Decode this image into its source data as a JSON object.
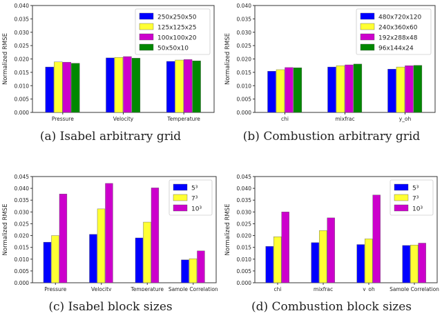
{
  "chart_data": [
    {
      "type": "bar",
      "caption": "(a) Isabel arbitrary grid",
      "ylabel": "Normalized RMSE",
      "ylim": [
        0,
        0.04
      ],
      "yticks": [
        "0.000",
        "0.005",
        "0.010",
        "0.015",
        "0.020",
        "0.025",
        "0.030",
        "0.035",
        "0.040"
      ],
      "categories": [
        "Pressure",
        "Velocity",
        "Temperature"
      ],
      "legend_position": "top-right",
      "series": [
        {
          "name": "250x250x50",
          "color": "#0000ff",
          "values": [
            0.017,
            0.0204,
            0.0191
          ]
        },
        {
          "name": "125x125x25",
          "color": "#ffff33",
          "values": [
            0.0189,
            0.0206,
            0.0196
          ]
        },
        {
          "name": "100x100x20",
          "color": "#cc00cc",
          "values": [
            0.0188,
            0.0209,
            0.0198
          ]
        },
        {
          "name": "50x50x10",
          "color": "#008800",
          "values": [
            0.0184,
            0.0203,
            0.0193
          ]
        }
      ]
    },
    {
      "type": "bar",
      "caption": "(b) Combustion arbitrary grid",
      "ylabel": "Normalized RMSE",
      "ylim": [
        0,
        0.04
      ],
      "yticks": [
        "0.000",
        "0.005",
        "0.010",
        "0.015",
        "0.020",
        "0.025",
        "0.030",
        "0.035",
        "0.040"
      ],
      "categories": [
        "chi",
        "mixfrac",
        "y_oh"
      ],
      "legend_position": "top-right",
      "series": [
        {
          "name": "480x720x120",
          "color": "#0000ff",
          "values": [
            0.0154,
            0.017,
            0.0162
          ]
        },
        {
          "name": "240x360x60",
          "color": "#ffff33",
          "values": [
            0.016,
            0.0175,
            0.017
          ]
        },
        {
          "name": "192x288x48",
          "color": "#cc00cc",
          "values": [
            0.0168,
            0.0178,
            0.0175
          ]
        },
        {
          "name": "96x144x24",
          "color": "#008800",
          "values": [
            0.0167,
            0.0181,
            0.0176
          ]
        }
      ]
    },
    {
      "type": "bar",
      "caption": "(c) Isabel block sizes",
      "ylabel": "Normalized RMSE",
      "ylim": [
        0,
        0.045
      ],
      "yticks": [
        "0.000",
        "0.005",
        "0.010",
        "0.015",
        "0.020",
        "0.025",
        "0.030",
        "0.035",
        "0.040",
        "0.045"
      ],
      "categories": [
        "Pressure",
        "Velocity",
        "Temperature",
        "Sample Correlation"
      ],
      "legend_position": "top-right",
      "series": [
        {
          "name": "5³",
          "color": "#0000ff",
          "values": [
            0.0172,
            0.0205,
            0.019,
            0.0097
          ]
        },
        {
          "name": "7³",
          "color": "#ffff33",
          "values": [
            0.02,
            0.0313,
            0.0257,
            0.0102
          ]
        },
        {
          "name": "10³",
          "color": "#cc00cc",
          "values": [
            0.0376,
            0.0421,
            0.0402,
            0.0135
          ]
        }
      ]
    },
    {
      "type": "bar",
      "caption": "(d) Combustion block sizes",
      "ylabel": "Normalized RMSE",
      "ylim": [
        0,
        0.045
      ],
      "yticks": [
        "0.000",
        "0.005",
        "0.010",
        "0.015",
        "0.020",
        "0.025",
        "0.030",
        "0.035",
        "0.040",
        "0.045"
      ],
      "categories": [
        "chi",
        "mixfrac",
        "y_oh",
        "Sample Correlation"
      ],
      "legend_position": "top-right",
      "series": [
        {
          "name": "5³",
          "color": "#0000ff",
          "values": [
            0.0154,
            0.017,
            0.0162,
            0.0158
          ]
        },
        {
          "name": "7³",
          "color": "#ffff33",
          "values": [
            0.0195,
            0.0221,
            0.0186,
            0.016
          ]
        },
        {
          "name": "10³",
          "color": "#cc00cc",
          "values": [
            0.03,
            0.0275,
            0.0372,
            0.0168
          ]
        }
      ]
    }
  ]
}
